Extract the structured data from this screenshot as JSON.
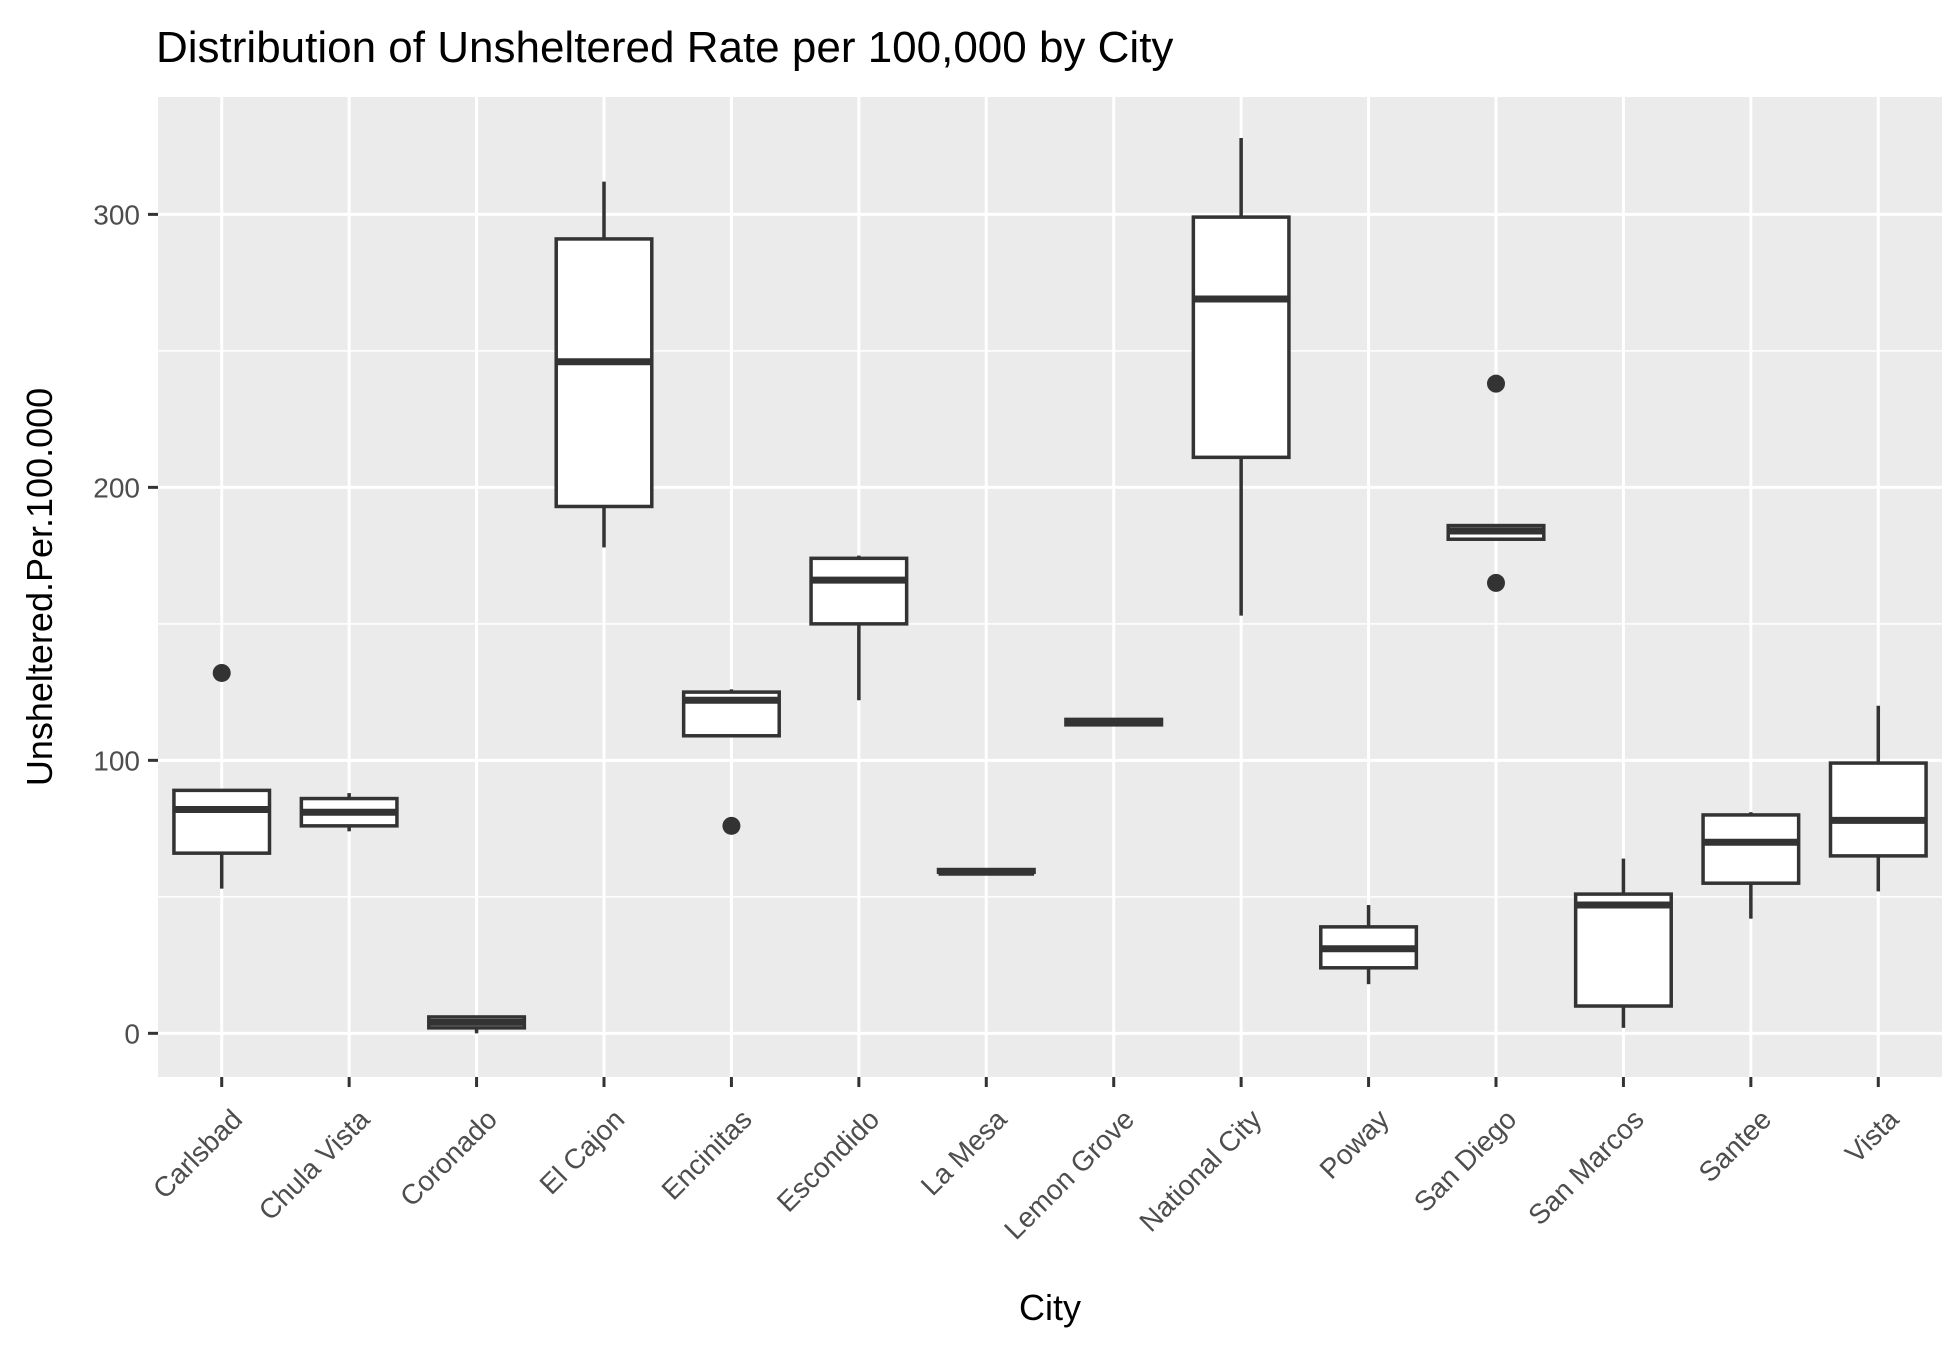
{
  "chart_data": {
    "type": "boxplot",
    "title": "Distribution of Unsheltered Rate per 100,000 by City",
    "xlabel": "City",
    "ylabel": "Unsheltered.Per.100.000",
    "ylim": [
      -16,
      343
    ],
    "yticks": [
      0,
      100,
      200,
      300
    ],
    "grid": true,
    "legend": "none",
    "categories": [
      "Carlsbad",
      "Chula Vista",
      "Coronado",
      "El Cajon",
      "Encinitas",
      "Escondido",
      "La Mesa",
      "Lemon Grove",
      "National City",
      "Poway",
      "San Diego",
      "San Marcos",
      "Santee",
      "Vista"
    ],
    "boxes": [
      {
        "city": "Carlsbad",
        "whisker_low": 53,
        "q1": 66,
        "median": 82,
        "q3": 89,
        "whisker_high": 89,
        "outliers": [
          132
        ]
      },
      {
        "city": "Chula Vista",
        "whisker_low": 74,
        "q1": 76,
        "median": 81,
        "q3": 86,
        "whisker_high": 88,
        "outliers": []
      },
      {
        "city": "Coronado",
        "whisker_low": 0,
        "q1": 2,
        "median": 4,
        "q3": 6,
        "whisker_high": 6,
        "outliers": []
      },
      {
        "city": "El Cajon",
        "whisker_low": 178,
        "q1": 193,
        "median": 246,
        "q3": 291,
        "whisker_high": 312,
        "outliers": []
      },
      {
        "city": "Encinitas",
        "whisker_low": 109,
        "q1": 109,
        "median": 122,
        "q3": 125,
        "whisker_high": 126,
        "outliers": [
          76
        ]
      },
      {
        "city": "Escondido",
        "whisker_low": 122,
        "q1": 150,
        "median": 166,
        "q3": 174,
        "whisker_high": 175,
        "outliers": []
      },
      {
        "city": "La Mesa",
        "whisker_low": 59,
        "q1": 59,
        "median": 59,
        "q3": 60,
        "whisker_high": 60,
        "outliers": []
      },
      {
        "city": "Lemon Grove",
        "whisker_low": 113,
        "q1": 113,
        "median": 114,
        "q3": 115,
        "whisker_high": 115,
        "outliers": []
      },
      {
        "city": "National City",
        "whisker_low": 153,
        "q1": 211,
        "median": 269,
        "q3": 299,
        "whisker_high": 328,
        "outliers": []
      },
      {
        "city": "Poway",
        "whisker_low": 18,
        "q1": 24,
        "median": 31,
        "q3": 39,
        "whisker_high": 47,
        "outliers": []
      },
      {
        "city": "San Diego",
        "whisker_low": 181,
        "q1": 181,
        "median": 184,
        "q3": 186,
        "whisker_high": 186,
        "outliers": [
          238,
          165
        ]
      },
      {
        "city": "San Marcos",
        "whisker_low": 2,
        "q1": 10,
        "median": 47,
        "q3": 51,
        "whisker_high": 64,
        "outliers": []
      },
      {
        "city": "Santee",
        "whisker_low": 42,
        "q1": 55,
        "median": 70,
        "q3": 80,
        "whisker_high": 81,
        "outliers": []
      },
      {
        "city": "Vista",
        "whisker_low": 52,
        "q1": 65,
        "median": 78,
        "q3": 99,
        "whisker_high": 120,
        "outliers": []
      }
    ],
    "colors": {
      "panel_background": "#ebebeb",
      "grid": "#ffffff",
      "box_fill": "#ffffff",
      "box_stroke": "#333333",
      "outlier": "#333333"
    }
  }
}
